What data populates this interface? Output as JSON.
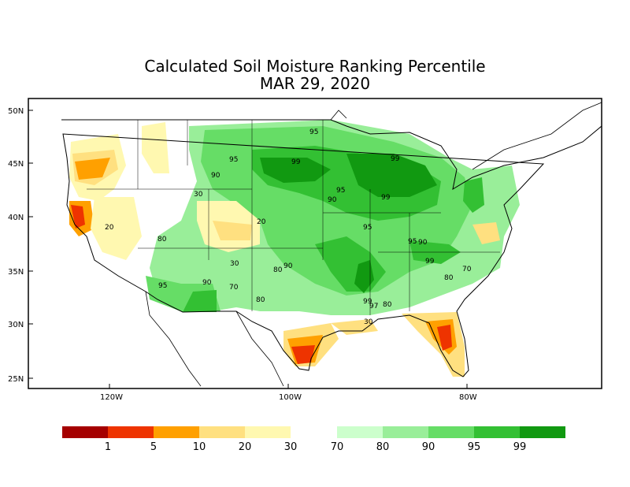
{
  "title": "Calculated Soil Moisture Ranking Percentile",
  "subtitle": "MAR 29, 2020",
  "axes": {
    "lat_labels": [
      "50N",
      "45N",
      "40N",
      "35N",
      "30N",
      "25N"
    ],
    "lon_labels": [
      "120W",
      "100W",
      "80W"
    ]
  },
  "contour_labels": [
    "95",
    "99",
    "95",
    "99",
    "90",
    "95",
    "90",
    "99",
    "30",
    "20",
    "20",
    "80",
    "30",
    "90",
    "80",
    "95",
    "95",
    "90",
    "99",
    "95",
    "90",
    "70",
    "80",
    "70",
    "80",
    "99",
    "97",
    "80",
    "30"
  ],
  "legend": {
    "colors": [
      "#a50000",
      "#ee3300",
      "#ffa000",
      "#ffe080",
      "#fff8b0",
      "#ccffcc",
      "#99ee99",
      "#66dd66",
      "#33c033",
      "#119911"
    ],
    "ticks": [
      "1",
      "5",
      "10",
      "20",
      "30",
      "70",
      "80",
      "90",
      "95",
      "99"
    ]
  }
}
